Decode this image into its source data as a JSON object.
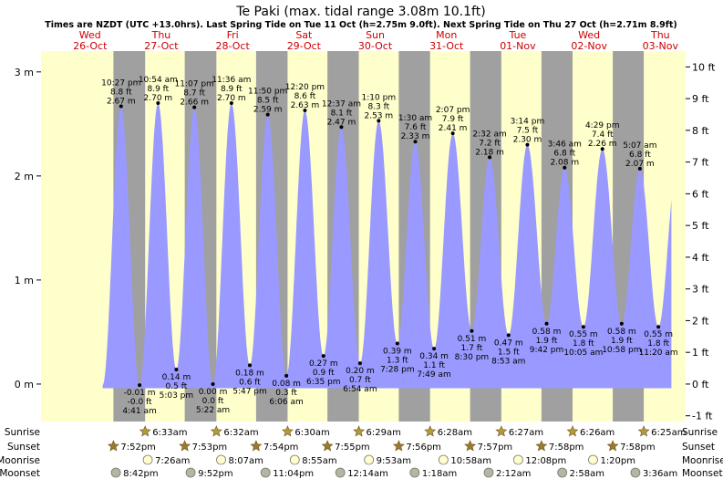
{
  "title": "Te Paki (max. tidal range 3.08m 10.1ft)",
  "subtitle": "Times are NZDT (UTC +13.0hrs). Last Spring Tide on Tue 11 Oct (h=2.75m 9.0ft). Next Spring Tide on Thu 27 Oct (h=2.71m 8.9ft)",
  "colors": {
    "water": "#9999ff",
    "day": "#ffffcc",
    "night": "#a0a0a0",
    "day_label": "#cc0000",
    "sun_icon": "#b59a3b",
    "moon_full": "#ffffcc",
    "moon_dark": "#b5b5a0"
  },
  "days": [
    {
      "dow": "Wed",
      "date": "26-Oct"
    },
    {
      "dow": "Thu",
      "date": "27-Oct"
    },
    {
      "dow": "Fri",
      "date": "28-Oct"
    },
    {
      "dow": "Sat",
      "date": "29-Oct"
    },
    {
      "dow": "Sun",
      "date": "30-Oct"
    },
    {
      "dow": "Mon",
      "date": "31-Oct"
    },
    {
      "dow": "Tue",
      "date": "01-Nov"
    },
    {
      "dow": "Wed",
      "date": "02-Nov"
    },
    {
      "dow": "Thu",
      "date": "03-Nov"
    }
  ],
  "chart_data": {
    "type": "area",
    "x_range_hours": [
      -4.5,
      212.5
    ],
    "ylim_m": [
      -0.36,
      3.2
    ],
    "left_axis_ticks": [
      {
        "value": 0,
        "label": "0 m"
      },
      {
        "value": 1,
        "label": "1 m"
      },
      {
        "value": 2,
        "label": "2 m"
      },
      {
        "value": 3,
        "label": "3 m"
      }
    ],
    "right_axis_ticks": [
      {
        "value": -1,
        "label": "-1 ft"
      },
      {
        "value": 0,
        "label": "0 ft"
      },
      {
        "value": 1,
        "label": "1 ft"
      },
      {
        "value": 2,
        "label": "2 ft"
      },
      {
        "value": 3,
        "label": "3 ft"
      },
      {
        "value": 4,
        "label": "4 ft"
      },
      {
        "value": 5,
        "label": "5 ft"
      },
      {
        "value": 6,
        "label": "6 ft"
      },
      {
        "value": 7,
        "label": "7 ft"
      },
      {
        "value": 8,
        "label": "8 ft"
      },
      {
        "value": 9,
        "label": "9 ft"
      },
      {
        "value": 10,
        "label": "10 ft"
      }
    ],
    "tides": [
      {
        "type": "high",
        "day": 0,
        "time": "10:27 pm",
        "ft": "8.8 ft",
        "m": 2.67,
        "m_label": "2.67 m"
      },
      {
        "type": "low",
        "day": 1,
        "time": "4:41 am",
        "ft": "-0.0 ft",
        "m": -0.01,
        "m_label": "-0.01 m"
      },
      {
        "type": "high",
        "day": 1,
        "time": "10:54 am",
        "ft": "8.9 ft",
        "m": 2.7,
        "m_label": "2.70 m"
      },
      {
        "type": "low",
        "day": 1,
        "time": "5:03 pm",
        "ft": "0.5 ft",
        "m": 0.14,
        "m_label": "0.14 m"
      },
      {
        "type": "high",
        "day": 1,
        "time": "11:07 pm",
        "ft": "8.7 ft",
        "m": 2.66,
        "m_label": "2.66 m"
      },
      {
        "type": "low",
        "day": 2,
        "time": "5:22 am",
        "ft": "0.0 ft",
        "m": 0.0,
        "m_label": "0.00 m"
      },
      {
        "type": "high",
        "day": 2,
        "time": "11:36 am",
        "ft": "8.9 ft",
        "m": 2.7,
        "m_label": "2.70 m"
      },
      {
        "type": "low",
        "day": 2,
        "time": "5:47 pm",
        "ft": "0.6 ft",
        "m": 0.18,
        "m_label": "0.18 m"
      },
      {
        "type": "high",
        "day": 2,
        "time": "11:50 pm",
        "ft": "8.5 ft",
        "m": 2.59,
        "m_label": "2.59 m"
      },
      {
        "type": "low",
        "day": 3,
        "time": "6:06 am",
        "ft": "0.3 ft",
        "m": 0.08,
        "m_label": "0.08 m"
      },
      {
        "type": "high",
        "day": 3,
        "time": "12:20 pm",
        "ft": "8.6 ft",
        "m": 2.63,
        "m_label": "2.63 m"
      },
      {
        "type": "low",
        "day": 3,
        "time": "6:35 pm",
        "ft": "0.9 ft",
        "m": 0.27,
        "m_label": "0.27 m"
      },
      {
        "type": "low",
        "day": 4,
        "time": "6:54 am",
        "ft": "0.7 ft",
        "m": 0.2,
        "m_label": "0.20 m"
      },
      {
        "type": "high",
        "day": 4,
        "time": "12:37 am",
        "ft": "8.1 ft",
        "m": 2.47,
        "m_label": "2.47 m"
      },
      {
        "type": "high",
        "day": 4,
        "time": "1:10 pm",
        "ft": "8.3 ft",
        "m": 2.53,
        "m_label": "2.53 m"
      },
      {
        "type": "low",
        "day": 4,
        "time": "7:28 pm",
        "ft": "1.3 ft",
        "m": 0.39,
        "m_label": "0.39 m"
      },
      {
        "type": "high",
        "day": 5,
        "time": "1:30 am",
        "ft": "7.6 ft",
        "m": 2.33,
        "m_label": "2.33 m"
      },
      {
        "type": "low",
        "day": 5,
        "time": "7:49 am",
        "ft": "1.1 ft",
        "m": 0.34,
        "m_label": "0.34 m"
      },
      {
        "type": "high",
        "day": 5,
        "time": "2:07 pm",
        "ft": "7.9 ft",
        "m": 2.41,
        "m_label": "2.41 m"
      },
      {
        "type": "low",
        "day": 5,
        "time": "8:30 pm",
        "ft": "1.7 ft",
        "m": 0.51,
        "m_label": "0.51 m"
      },
      {
        "type": "high",
        "day": 6,
        "time": "2:32 am",
        "ft": "7.2 ft",
        "m": 2.18,
        "m_label": "2.18 m"
      },
      {
        "type": "low",
        "day": 6,
        "time": "8:53 am",
        "ft": "1.5 ft",
        "m": 0.47,
        "m_label": "0.47 m"
      },
      {
        "type": "high",
        "day": 6,
        "time": "3:14 pm",
        "ft": "7.5 ft",
        "m": 2.3,
        "m_label": "2.30 m"
      },
      {
        "type": "low",
        "day": 6,
        "time": "9:42 pm",
        "ft": "1.9 ft",
        "m": 0.58,
        "m_label": "0.58 m"
      },
      {
        "type": "high",
        "day": 7,
        "time": "3:46 am",
        "ft": "6.8 ft",
        "m": 2.08,
        "m_label": "2.08 m"
      },
      {
        "type": "low",
        "day": 7,
        "time": "10:05 am",
        "ft": "1.8 ft",
        "m": 0.55,
        "m_label": "0.55 m"
      },
      {
        "type": "high",
        "day": 7,
        "time": "4:29 pm",
        "ft": "7.4 ft",
        "m": 2.26,
        "m_label": "2.26 m"
      },
      {
        "type": "low",
        "day": 7,
        "time": "10:58 pm",
        "ft": "1.9 ft",
        "m": 0.58,
        "m_label": "0.58 m"
      },
      {
        "type": "high",
        "day": 8,
        "time": "5:07 am",
        "ft": "6.8 ft",
        "m": 2.07,
        "m_label": "2.07 m"
      },
      {
        "type": "low",
        "day": 8,
        "time": "11:20 am",
        "ft": "1.8 ft",
        "m": 0.55,
        "m_label": "0.55 m"
      }
    ]
  },
  "sun_moon": {
    "labels": {
      "sunrise": "Sunrise",
      "sunset": "Sunset",
      "moonrise": "Moonrise",
      "moonset": "Moonset"
    },
    "sunrise": [
      {
        "day": 1,
        "time": "6:33am"
      },
      {
        "day": 2,
        "time": "6:32am"
      },
      {
        "day": 3,
        "time": "6:30am"
      },
      {
        "day": 4,
        "time": "6:29am"
      },
      {
        "day": 5,
        "time": "6:28am"
      },
      {
        "day": 6,
        "time": "6:27am"
      },
      {
        "day": 7,
        "time": "6:26am"
      },
      {
        "day": 8,
        "time": "6:25am"
      }
    ],
    "sunset": [
      {
        "day": 0,
        "time": "7:52pm"
      },
      {
        "day": 1,
        "time": "7:53pm"
      },
      {
        "day": 2,
        "time": "7:54pm"
      },
      {
        "day": 3,
        "time": "7:55pm"
      },
      {
        "day": 4,
        "time": "7:56pm"
      },
      {
        "day": 5,
        "time": "7:57pm"
      },
      {
        "day": 6,
        "time": "7:58pm"
      },
      {
        "day": 7,
        "time": "7:58pm"
      }
    ],
    "moonrise": [
      {
        "day": 1,
        "time": "7:26am"
      },
      {
        "day": 2,
        "time": "8:07am"
      },
      {
        "day": 3,
        "time": "8:55am"
      },
      {
        "day": 4,
        "time": "9:53am"
      },
      {
        "day": 5,
        "time": "10:58am"
      },
      {
        "day": 6,
        "time": "12:08pm"
      },
      {
        "day": 7,
        "time": "1:20pm"
      }
    ],
    "moonset": [
      {
        "day": 0,
        "time": "8:42pm"
      },
      {
        "day": 1,
        "time": "9:52pm"
      },
      {
        "day": 2,
        "time": "11:04pm"
      },
      {
        "day": 4,
        "time": "12:14am"
      },
      {
        "day": 5,
        "time": "1:18am"
      },
      {
        "day": 6,
        "time": "2:12am"
      },
      {
        "day": 7,
        "time": "2:58am"
      },
      {
        "day": 8,
        "time": "3:36am"
      }
    ]
  }
}
